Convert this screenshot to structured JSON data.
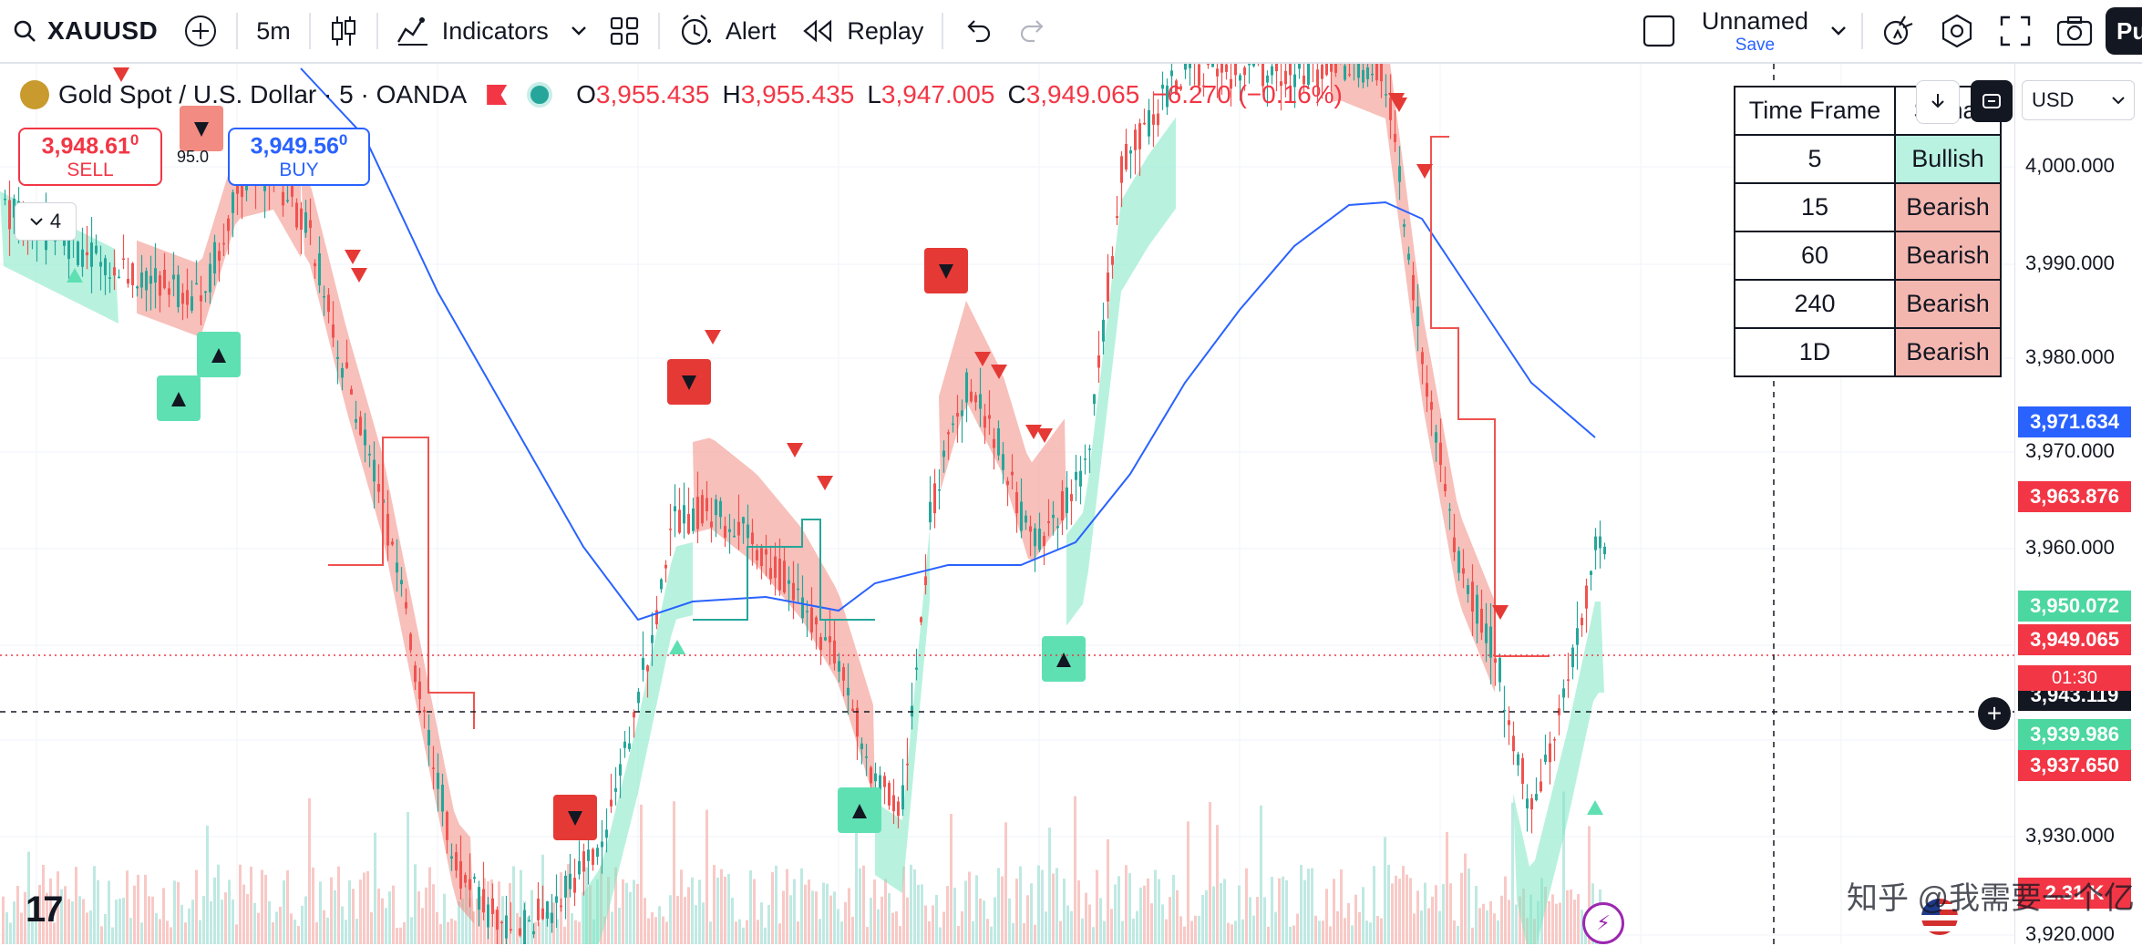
{
  "toolbar": {
    "symbol": "XAUUSD",
    "interval": "5m",
    "indicators_label": "Indicators",
    "alert_label": "Alert",
    "replay_label": "Replay",
    "layout_name": "Unnamed",
    "save_label": "Save",
    "publish_label": "Pu",
    "icons": [
      "search-icon",
      "add-symbol-icon",
      "candles-icon",
      "indicators-icon",
      "chevron-down-icon",
      "templates-icon",
      "alert-icon",
      "replay-icon",
      "undo-icon",
      "redo-icon",
      "checkbox-icon",
      "quick-search-icon",
      "settings-icon",
      "fullscreen-icon",
      "camera-icon"
    ]
  },
  "legend": {
    "title": "Gold Spot / U.S. Dollar · 5 · OANDA",
    "open_key": "O",
    "open": "3,955.435",
    "high_key": "H",
    "high": "3,955.435",
    "low_key": "L",
    "low": "3,947.005",
    "close_key": "C",
    "close": "3,949.065",
    "change": "−6.270 (−0.16%)"
  },
  "trade": {
    "sell_price": "3,948.61",
    "sell_price_sup": "0",
    "sell_label": "SELL",
    "buy_price": "3,949.56",
    "buy_price_sup": "0",
    "buy_label": "BUY",
    "spread": "95.0"
  },
  "indicators_collapse_count": "4",
  "mtf_table": {
    "header_tf": "Time Frame",
    "header_signal": "Signal",
    "rows": [
      {
        "tf": "5",
        "signal": "Bullish"
      },
      {
        "tf": "15",
        "signal": "Bearish"
      },
      {
        "tf": "60",
        "signal": "Bearish"
      },
      {
        "tf": "240",
        "signal": "Bearish"
      },
      {
        "tf": "1D",
        "signal": "Bearish"
      }
    ]
  },
  "price_axis": {
    "currency": "USD",
    "ticks": [
      "4,000.000",
      "3,990.000",
      "3,980.000",
      "3,970.000",
      "3,960.000",
      "3,930.000",
      "3,920.000"
    ],
    "tags": [
      {
        "label": "3,971.634",
        "color": "#2962ff"
      },
      {
        "label": "3,963.876",
        "color": "#f23645"
      },
      {
        "label": "3,950.072",
        "color": "#4cd7a0"
      },
      {
        "label": "3,949.065",
        "color": "#f23645"
      },
      {
        "label": "3,943.119",
        "color": "#131722"
      },
      {
        "label": "3,939.986",
        "color": "#4cd7a0"
      },
      {
        "label": "3,937.650",
        "color": "#f23645"
      },
      {
        "label": "2.31 K",
        "color": "#f23645"
      }
    ],
    "countdown": "01:30"
  },
  "colors": {
    "bull": "#26a69a",
    "bear": "#ef5350",
    "bull_band": "#7ee8c4",
    "bear_band": "#f08c84",
    "ma_line": "#2962ff"
  },
  "watermark": "知乎 @我需要一个亿",
  "tv_logo": "17"
}
